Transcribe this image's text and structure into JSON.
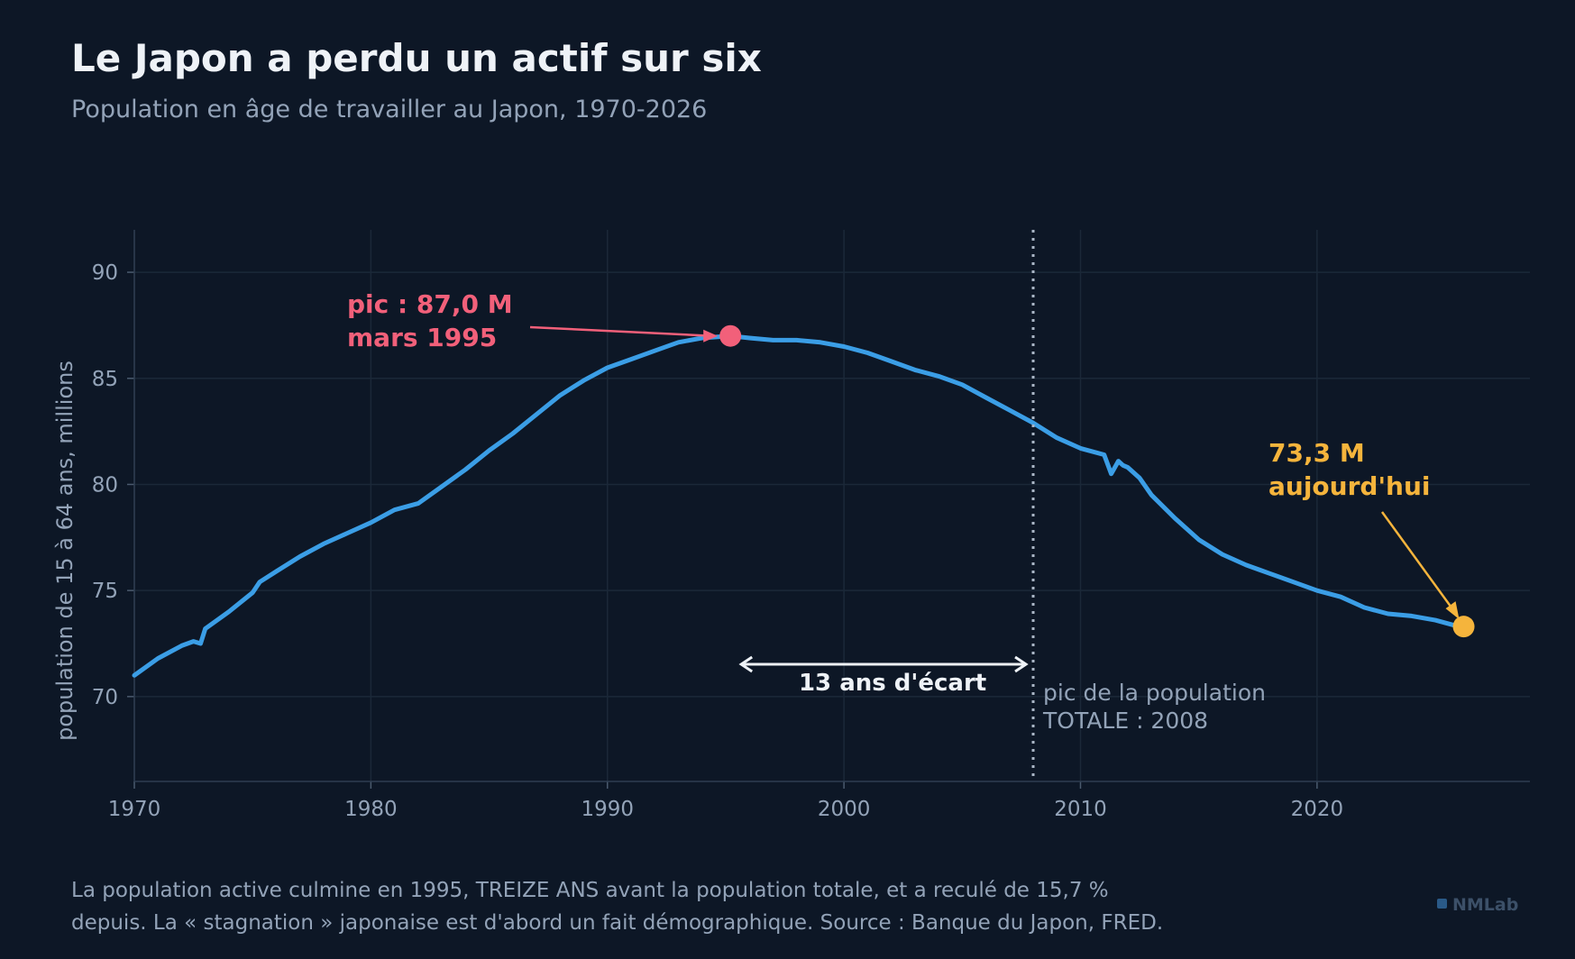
{
  "header": {
    "title": "Le Japon a perdu un actif sur six",
    "subtitle": "Population en âge de travailler au Japon, 1970-2026"
  },
  "footer": {
    "line1": "La population active culmine en 1995, TREIZE ANS avant la population totale, et a reculé de 15,7 %",
    "line2": "depuis. La « stagnation » japonaise est d'abord un fait démographique. Source : Banque du Japon, FRED.",
    "brand": "NMLab"
  },
  "colors": {
    "background": "#0d1726",
    "line": "#3b9ee6",
    "peak": "#f2607a",
    "current": "#f5b43c",
    "text": "#eef2f7",
    "muted": "#93a3b8"
  },
  "chart_data": {
    "type": "line",
    "ylabel": "population de 15 à 64 ans, millions",
    "xlabel": "",
    "xlim": [
      1970,
      2029
    ],
    "ylim": [
      66,
      92
    ],
    "xticks": [
      "1970",
      "1980",
      "1990",
      "2000",
      "2010",
      "2020"
    ],
    "yticks": [
      "70",
      "75",
      "80",
      "85",
      "90"
    ],
    "grid": true,
    "series": [
      {
        "x": [
          1970.0,
          1971.0,
          1972.0,
          1972.5,
          1972.8,
          1973.0,
          1974.0,
          1975.0,
          1975.3,
          1976.0,
          1977.0,
          1978.0,
          1979.0,
          1980.0,
          1981.0,
          1982.0,
          1983.0,
          1984.0,
          1985.0,
          1986.0,
          1987.0,
          1988.0,
          1989.0,
          1990.0,
          1991.0,
          1992.0,
          1993.0,
          1994.0,
          1995.2,
          1996.0,
          1997.0,
          1998.0,
          1999.0,
          2000.0,
          2001.0,
          2002.0,
          2003.0,
          2004.0,
          2005.0,
          2006.0,
          2007.0,
          2008.0,
          2009.0,
          2010.0,
          2011.0,
          2011.3,
          2011.6,
          2011.8,
          2012.0,
          2012.5,
          2013.0,
          2014.0,
          2015.0,
          2016.0,
          2017.0,
          2018.0,
          2019.0,
          2020.0,
          2021.0,
          2022.0,
          2023.0,
          2024.0,
          2025.0,
          2026.0
        ],
        "values": [
          71.0,
          71.8,
          72.4,
          72.6,
          72.5,
          73.2,
          74.0,
          74.9,
          75.4,
          75.9,
          76.6,
          77.2,
          77.7,
          78.2,
          78.8,
          79.1,
          79.9,
          80.7,
          81.6,
          82.4,
          83.3,
          84.2,
          84.9,
          85.5,
          85.9,
          86.3,
          86.7,
          86.9,
          87.0,
          86.9,
          86.8,
          86.8,
          86.7,
          86.5,
          86.2,
          85.8,
          85.4,
          85.1,
          84.7,
          84.1,
          83.5,
          82.9,
          82.2,
          81.7,
          81.4,
          80.5,
          81.1,
          80.9,
          80.8,
          80.3,
          79.5,
          78.4,
          77.4,
          76.7,
          76.2,
          75.8,
          75.4,
          75.0,
          74.7,
          74.2,
          73.9,
          73.8,
          73.6,
          73.3
        ]
      }
    ],
    "annotations": {
      "peak": {
        "label_line1": "pic : 87,0 M",
        "label_line2": "mars 1995",
        "x": 1995.2,
        "y": 87.0
      },
      "current": {
        "label_line1": "73,3 M",
        "label_line2": "aujourd'hui",
        "x": 2026.2,
        "y": 73.3
      },
      "gap": {
        "label": "13 ans d'écart",
        "from": 1995.2,
        "to": 2008.0
      },
      "vline": {
        "x": 2008.0,
        "label_line1": "pic de la population",
        "label_line2": "TOTALE : 2008"
      }
    }
  }
}
